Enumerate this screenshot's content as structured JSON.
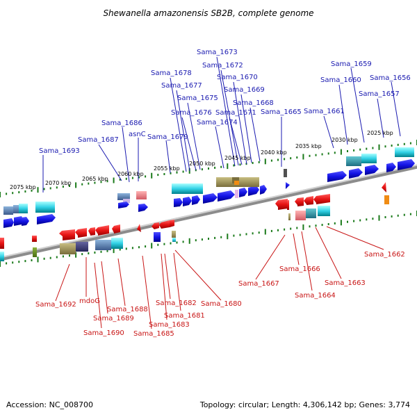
{
  "title": "Shewanella amazonensis SB2B, complete genome",
  "accession": "Accession: NC_008700",
  "topology": "Topology: circular; Length: 4,306,142 bp; Genes: 3,774",
  "scale_labels": [
    "2075 kbp",
    "2070 kbp",
    "2065 kbp",
    "2060 kbp",
    "2055 kbp",
    "2050 kbp",
    "2045 kbp",
    "2040 kbp",
    "2035 kbp",
    "2030 kbp",
    "2025 kbp"
  ],
  "top_labels": [
    "Sama_1693",
    "Sama_1687",
    "Sama_1686",
    "asnC",
    "Sama_1679",
    "Sama_1678",
    "Sama_1677",
    "Sama_1676",
    "Sama_1675",
    "Sama_1674",
    "Sama_1673",
    "Sama_1672",
    "Sama_1671",
    "Sama_1670",
    "Sama_1669",
    "Sama_1668",
    "Sama_1665",
    "Sama_1661",
    "Sama_1660",
    "Sama_1659",
    "Sama_1657",
    "Sama_1656"
  ],
  "bottom_labels": [
    "Sama_1692",
    "mdoG",
    "Sama_1690",
    "Sama_1689",
    "Sama_1688",
    "Sama_1685",
    "Sama_1683",
    "Sama_1682",
    "Sama_1681",
    "Sama_1680",
    "Sama_1667",
    "Sama_1666",
    "Sama_1664",
    "Sama_1663",
    "Sama_1662"
  ],
  "colors": {
    "plus_strand": "#1414e6",
    "minus_strand": "#e61414",
    "top_label": "#1a1ab0",
    "bottom_label": "#c81414",
    "tick": "#1a7a1a",
    "backbone": "#8c8c8c"
  }
}
